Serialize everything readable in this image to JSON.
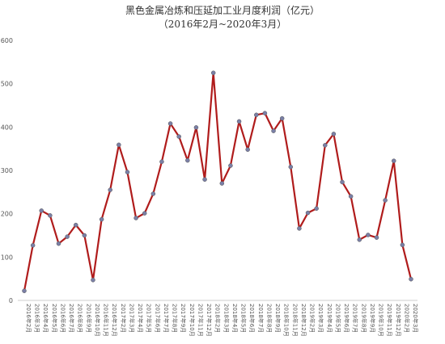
{
  "chart_data": {
    "type": "line",
    "title": "黑色金属冶炼和压延加工业月度利润（亿元）",
    "subtitle": "（2016年2月~2020年3月）",
    "categories": [
      "2016年2月",
      "2016年3月",
      "2016年4月",
      "2016年5月",
      "2016年6月",
      "2016年7月",
      "2016年8月",
      "2016年9月",
      "2016年10月",
      "2016年11月",
      "2016年12月",
      "2017年2月",
      "2017年3月",
      "2017年4月",
      "2017年5月",
      "2017年6月",
      "2017年7月",
      "2017年8月",
      "2017年9月",
      "2017年10月",
      "2017年11月",
      "2017年12月",
      "2018年2月",
      "2018年3月",
      "2018年4月",
      "2018年5月",
      "2018年6月",
      "2018年7月",
      "2018年8月",
      "2018年9月",
      "2018年10月",
      "2018年11月",
      "2018年12月",
      "2019年2月",
      "2019年3月",
      "2019年4月",
      "2019年5月",
      "2019年6月",
      "2019年7月",
      "2019年8月",
      "2019年9月",
      "2019年10月",
      "2019年11月",
      "2019年12月",
      "2020年2月",
      "2020年3月"
    ],
    "values": [
      22,
      127,
      207,
      196,
      131,
      147,
      174,
      150,
      47,
      187,
      255,
      359,
      296,
      190,
      201,
      246,
      320,
      408,
      378,
      323,
      399,
      279,
      525,
      270,
      311,
      413,
      348,
      428,
      432,
      391,
      420,
      308,
      166,
      202,
      212,
      358,
      384,
      273,
      240,
      140,
      151,
      145,
      231,
      322,
      128,
      49
    ],
    "color": "#b01c1c",
    "marker_color": "#7a7fa6",
    "ylim": [
      0,
      600
    ],
    "yticks": [
      0,
      100,
      200,
      300,
      400,
      500,
      600
    ],
    "grid": false
  }
}
